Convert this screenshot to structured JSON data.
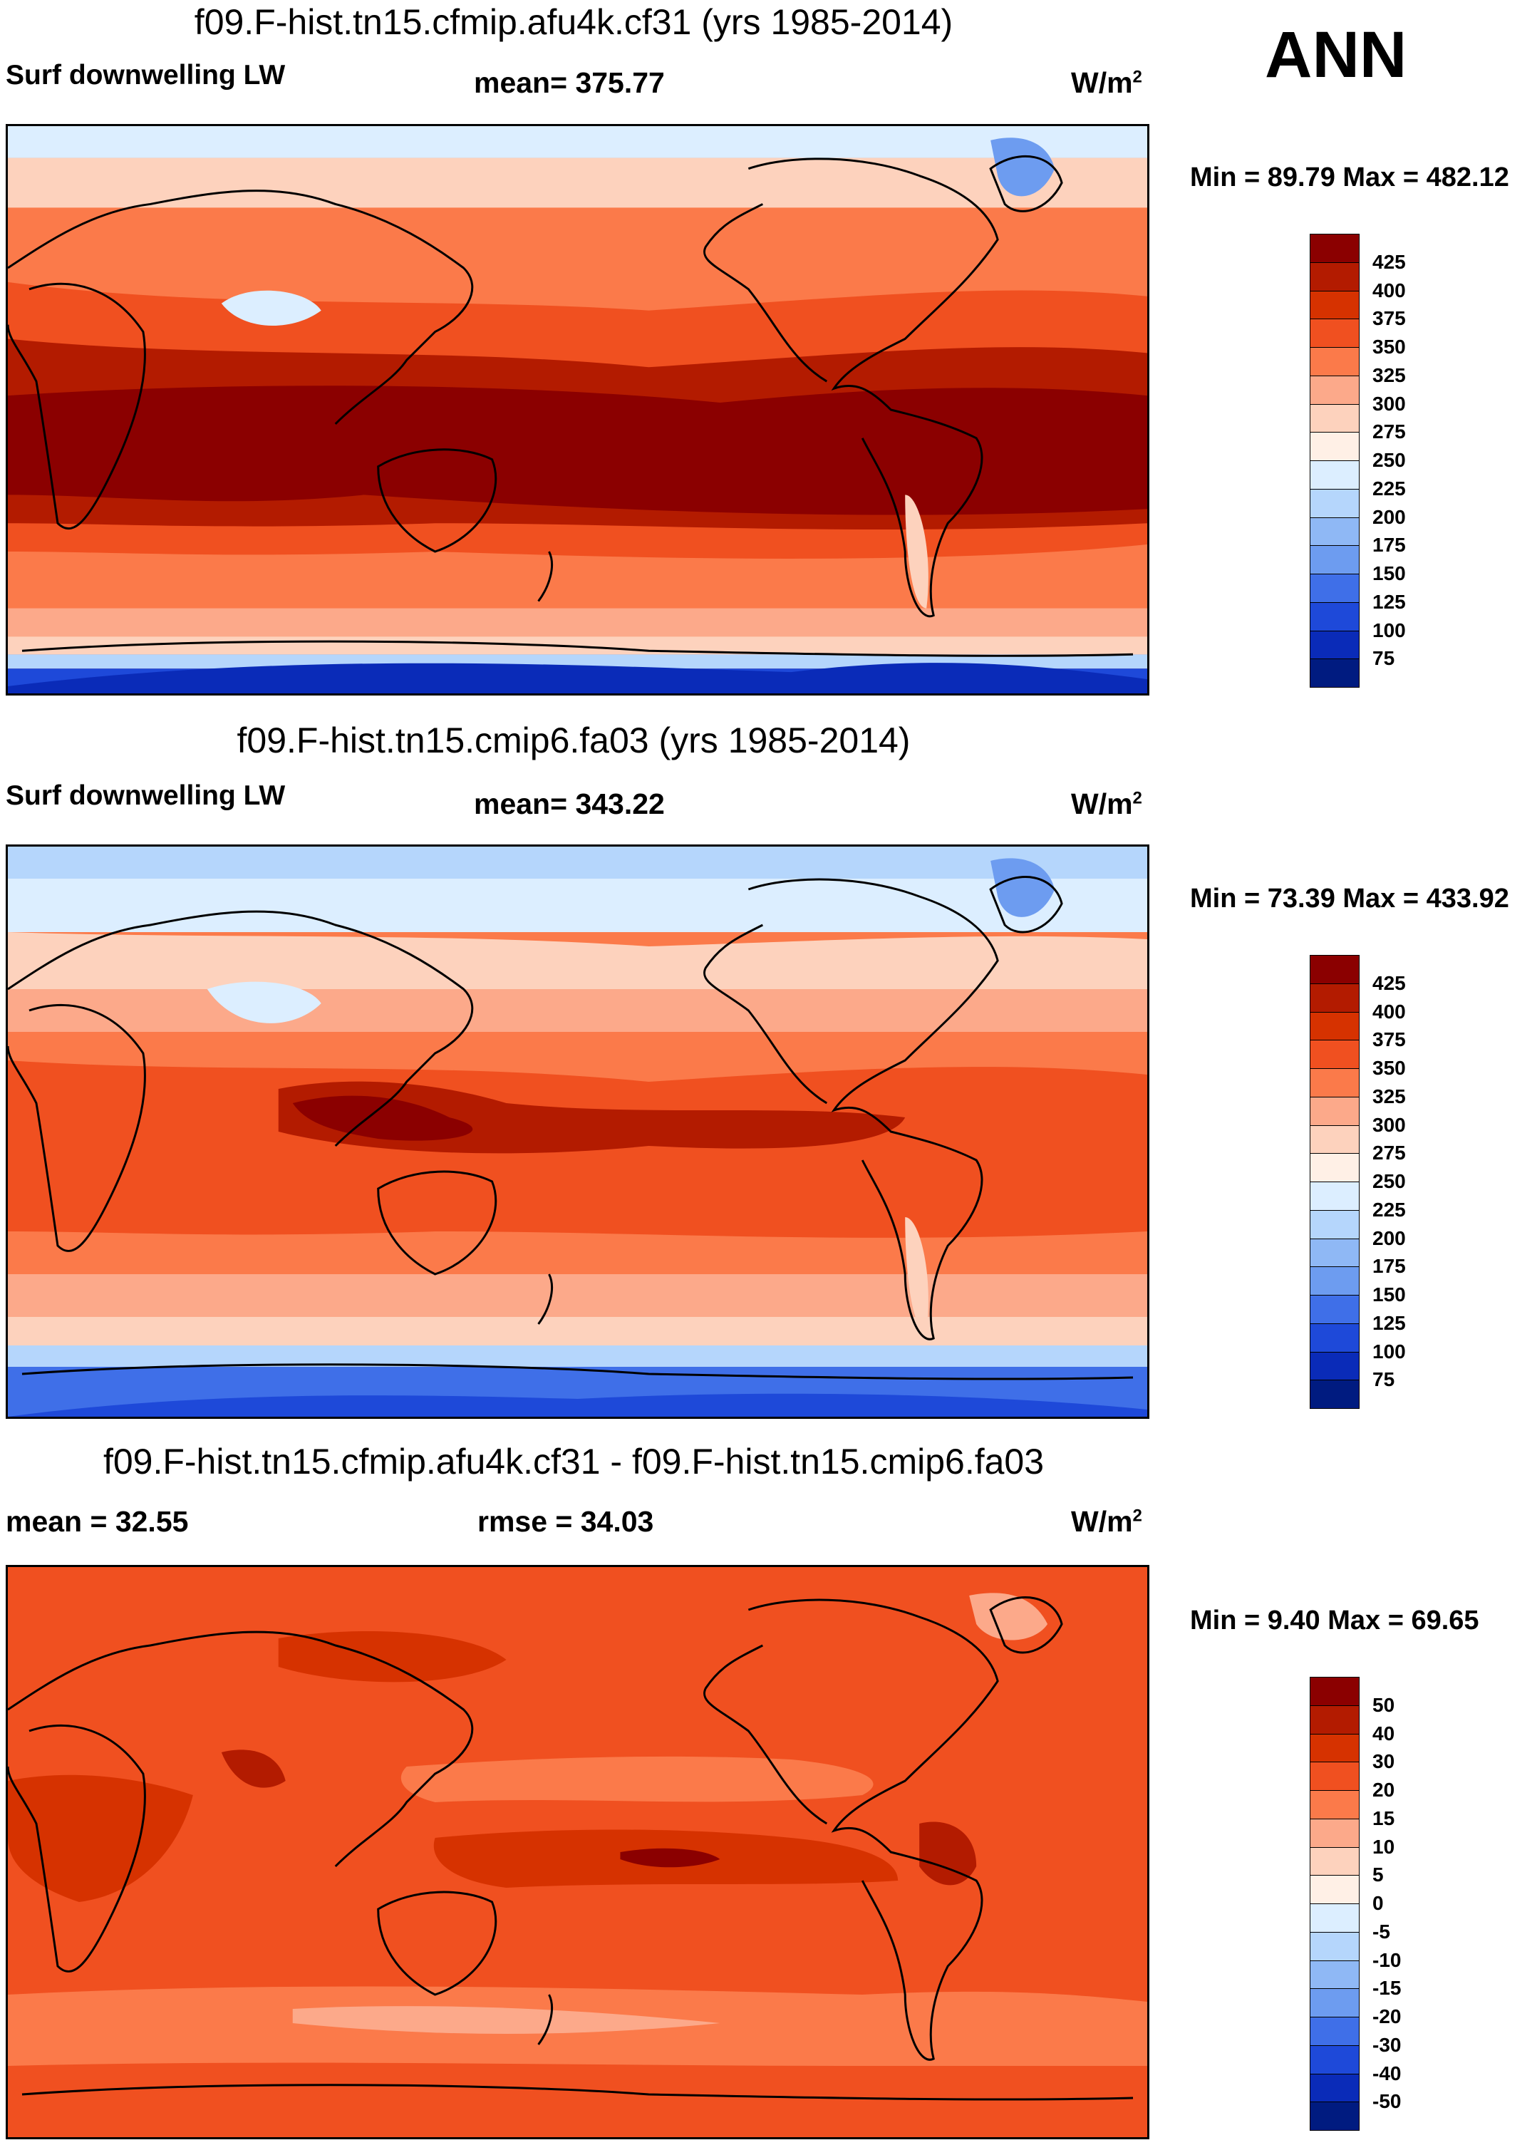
{
  "season": "ANN",
  "panels": [
    {
      "title": "f09.F-hist.tn15.cfmip.afu4k.cf31 (yrs 1985-2014)",
      "left_label": "Surf downwelling LW",
      "center_label": "mean= 375.77",
      "units": "W/m",
      "units_exp": "2",
      "minmax": "Min =  89.79 Max = 482.12",
      "colorbar": {
        "labels": [
          "425",
          "400",
          "375",
          "350",
          "325",
          "300",
          "275",
          "250",
          "225",
          "200",
          "175",
          "150",
          "125",
          "100",
          "75"
        ],
        "colors": [
          "#8b0000",
          "#b31b00",
          "#d63200",
          "#f05020",
          "#fb7a4a",
          "#fca98a",
          "#fdd2bd",
          "#fff0e6",
          "#dceeff",
          "#b5d6fc",
          "#8fb8f5",
          "#6d9cf0",
          "#3f6fe8",
          "#1e49d9",
          "#0a2bb8",
          "#001b80"
        ]
      },
      "map_id": "m1"
    },
    {
      "title": "f09.F-hist.tn15.cmip6.fa03 (yrs 1985-2014)",
      "left_label": "Surf downwelling LW",
      "center_label": "mean= 343.22",
      "units": "W/m",
      "units_exp": "2",
      "minmax": "Min =  73.39 Max = 433.92",
      "colorbar": {
        "labels": [
          "425",
          "400",
          "375",
          "350",
          "325",
          "300",
          "275",
          "250",
          "225",
          "200",
          "175",
          "150",
          "125",
          "100",
          "75"
        ],
        "colors": [
          "#8b0000",
          "#b31b00",
          "#d63200",
          "#f05020",
          "#fb7a4a",
          "#fca98a",
          "#fdd2bd",
          "#fff0e6",
          "#dceeff",
          "#b5d6fc",
          "#8fb8f5",
          "#6d9cf0",
          "#3f6fe8",
          "#1e49d9",
          "#0a2bb8",
          "#001b80"
        ]
      },
      "map_id": "m2"
    },
    {
      "title": "f09.F-hist.tn15.cfmip.afu4k.cf31 - f09.F-hist.tn15.cmip6.fa03",
      "left_label": "mean =  32.55",
      "center_label": "rmse =  34.03",
      "units": "W/m",
      "units_exp": "2",
      "minmax": "Min =   9.40 Max =  69.65",
      "colorbar": {
        "labels": [
          "50",
          "40",
          "30",
          "20",
          "15",
          "10",
          "5",
          "0",
          "-5",
          "-10",
          "-15",
          "-20",
          "-30",
          "-40",
          "-50"
        ],
        "colors": [
          "#8b0000",
          "#b31b00",
          "#d63200",
          "#f05020",
          "#fb7a4a",
          "#fca98a",
          "#fdd2bd",
          "#fff0e6",
          "#dceeff",
          "#b5d6fc",
          "#8fb8f5",
          "#6d9cf0",
          "#3f6fe8",
          "#1e49d9",
          "#0a2bb8",
          "#001b80"
        ]
      },
      "map_id": "m3"
    }
  ]
}
